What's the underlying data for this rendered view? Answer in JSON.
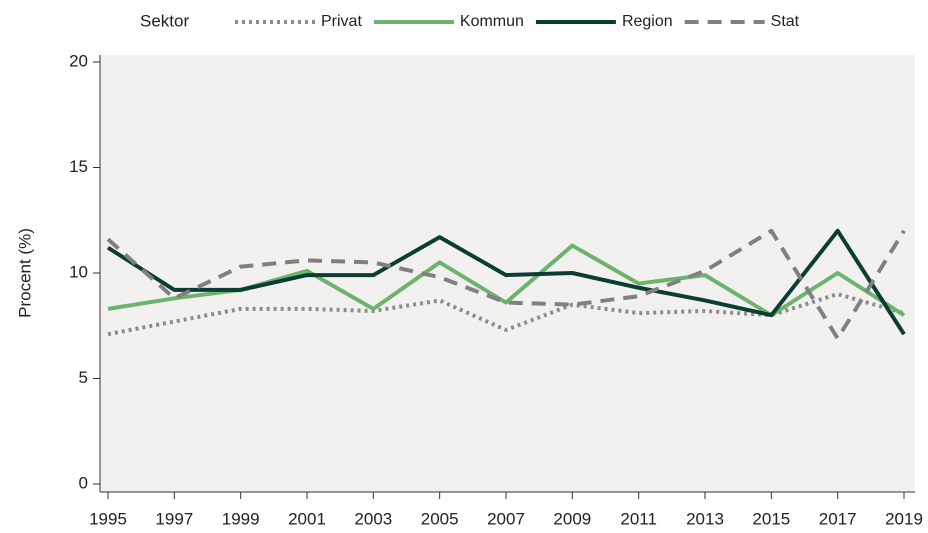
{
  "chart_data": {
    "type": "line",
    "legend_title": "Sektor",
    "y_label": "Procent (%)",
    "x": [
      1995,
      1997,
      1999,
      2001,
      2003,
      2005,
      2007,
      2009,
      2011,
      2013,
      2015,
      2017,
      2019
    ],
    "xlim": [
      1995,
      2019
    ],
    "xticks": [
      1995,
      1997,
      1999,
      2001,
      2003,
      2005,
      2007,
      2009,
      2011,
      2013,
      2015,
      2017,
      2019
    ],
    "ylim": [
      0,
      20
    ],
    "yticks": [
      0,
      5,
      10,
      15,
      20
    ],
    "legend_position": "top",
    "series": [
      {
        "name": "Privat",
        "color": "#8c8c8c",
        "style": "dotted",
        "values": [
          7.1,
          7.7,
          8.3,
          8.3,
          8.2,
          8.7,
          7.3,
          8.5,
          8.1,
          8.2,
          8.0,
          9.0,
          8.1
        ]
      },
      {
        "name": "Kommun",
        "color": "#6db36d",
        "style": "solid",
        "values": [
          8.3,
          8.8,
          9.2,
          10.1,
          8.3,
          10.5,
          8.6,
          11.3,
          9.5,
          9.9,
          8.0,
          10.0,
          8.0
        ]
      },
      {
        "name": "Region",
        "color": "#0b3d34",
        "style": "solid",
        "values": [
          11.2,
          9.2,
          9.2,
          9.9,
          9.9,
          11.7,
          9.9,
          10.0,
          9.3,
          8.7,
          8.0,
          12.0,
          7.1
        ]
      },
      {
        "name": "Stat",
        "color": "#808080",
        "style": "dashed",
        "values": [
          11.6,
          8.8,
          10.3,
          10.6,
          10.5,
          9.8,
          8.6,
          8.5,
          8.9,
          10.1,
          12.0,
          6.9,
          12.0
        ]
      }
    ]
  }
}
